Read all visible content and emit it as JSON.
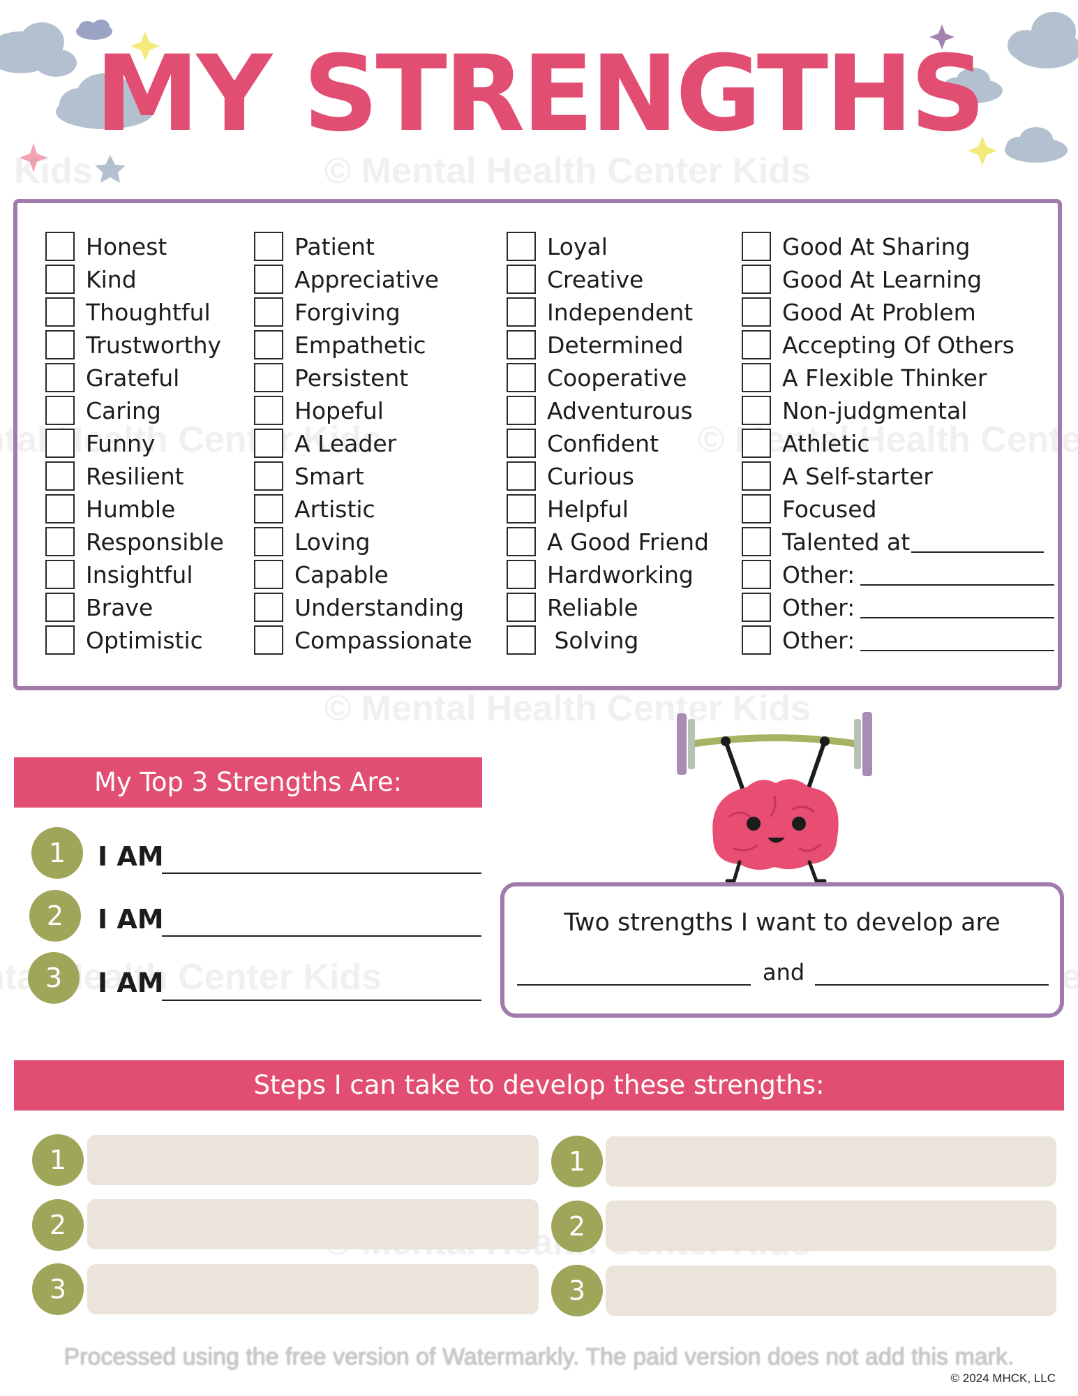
{
  "title": "MY STRENGTHS",
  "colors": {
    "accent_pink": "#e24d72",
    "frame_purple": "#a07bab",
    "number_olive": "#9fa659",
    "step_box": "#ebe4da",
    "cloud": "#b3c0cf"
  },
  "watermark": {
    "text": "© Mental Health Center Kids",
    "fragment": "Kids",
    "footer": "Processed using the free version of Watermarkly. The paid version does not add this mark."
  },
  "copyright": "© 2024 MHCK, LLC",
  "checklist": {
    "columns": [
      [
        "Honest",
        "Kind",
        "Thoughtful",
        "Trustworthy",
        "Grateful",
        "Caring",
        "Funny",
        "Resilient",
        "Humble",
        "Responsible",
        "Insightful",
        "Brave",
        "Optimistic"
      ],
      [
        "Patient",
        "Appreciative",
        "Forgiving",
        "Empathetic",
        "Persistent",
        "Hopeful",
        "A Leader",
        "Smart",
        "Artistic",
        "Loving",
        "Capable",
        "Understanding",
        "Compassionate"
      ],
      [
        "Loyal",
        "Creative",
        "Independent",
        "Determined",
        "Cooperative",
        "Adventurous",
        "Confident",
        "Curious",
        "Helpful",
        "A Good Friend",
        "Hardworking",
        "Reliable",
        " Solving"
      ],
      [
        "Good At Sharing",
        "Good At Learning",
        "Good At Problem",
        "Accepting Of Others",
        "A Flexible Thinker",
        "Non-judgmental",
        "Athletic",
        "A Self-starter",
        "Focused",
        "Talented at",
        "Other:",
        "Other:",
        "Other:"
      ]
    ]
  },
  "top3": {
    "heading": "My Top 3 Strengths Are:",
    "items": [
      {
        "num": "1",
        "label": "I AM"
      },
      {
        "num": "2",
        "label": "I AM"
      },
      {
        "num": "3",
        "label": "I AM"
      }
    ]
  },
  "develop": {
    "text": "Two strengths I want to develop are",
    "and": "and"
  },
  "steps": {
    "heading": "Steps I can take to develop these strengths:",
    "left": [
      "1",
      "2",
      "3"
    ],
    "right": [
      "1",
      "2",
      "3"
    ]
  }
}
